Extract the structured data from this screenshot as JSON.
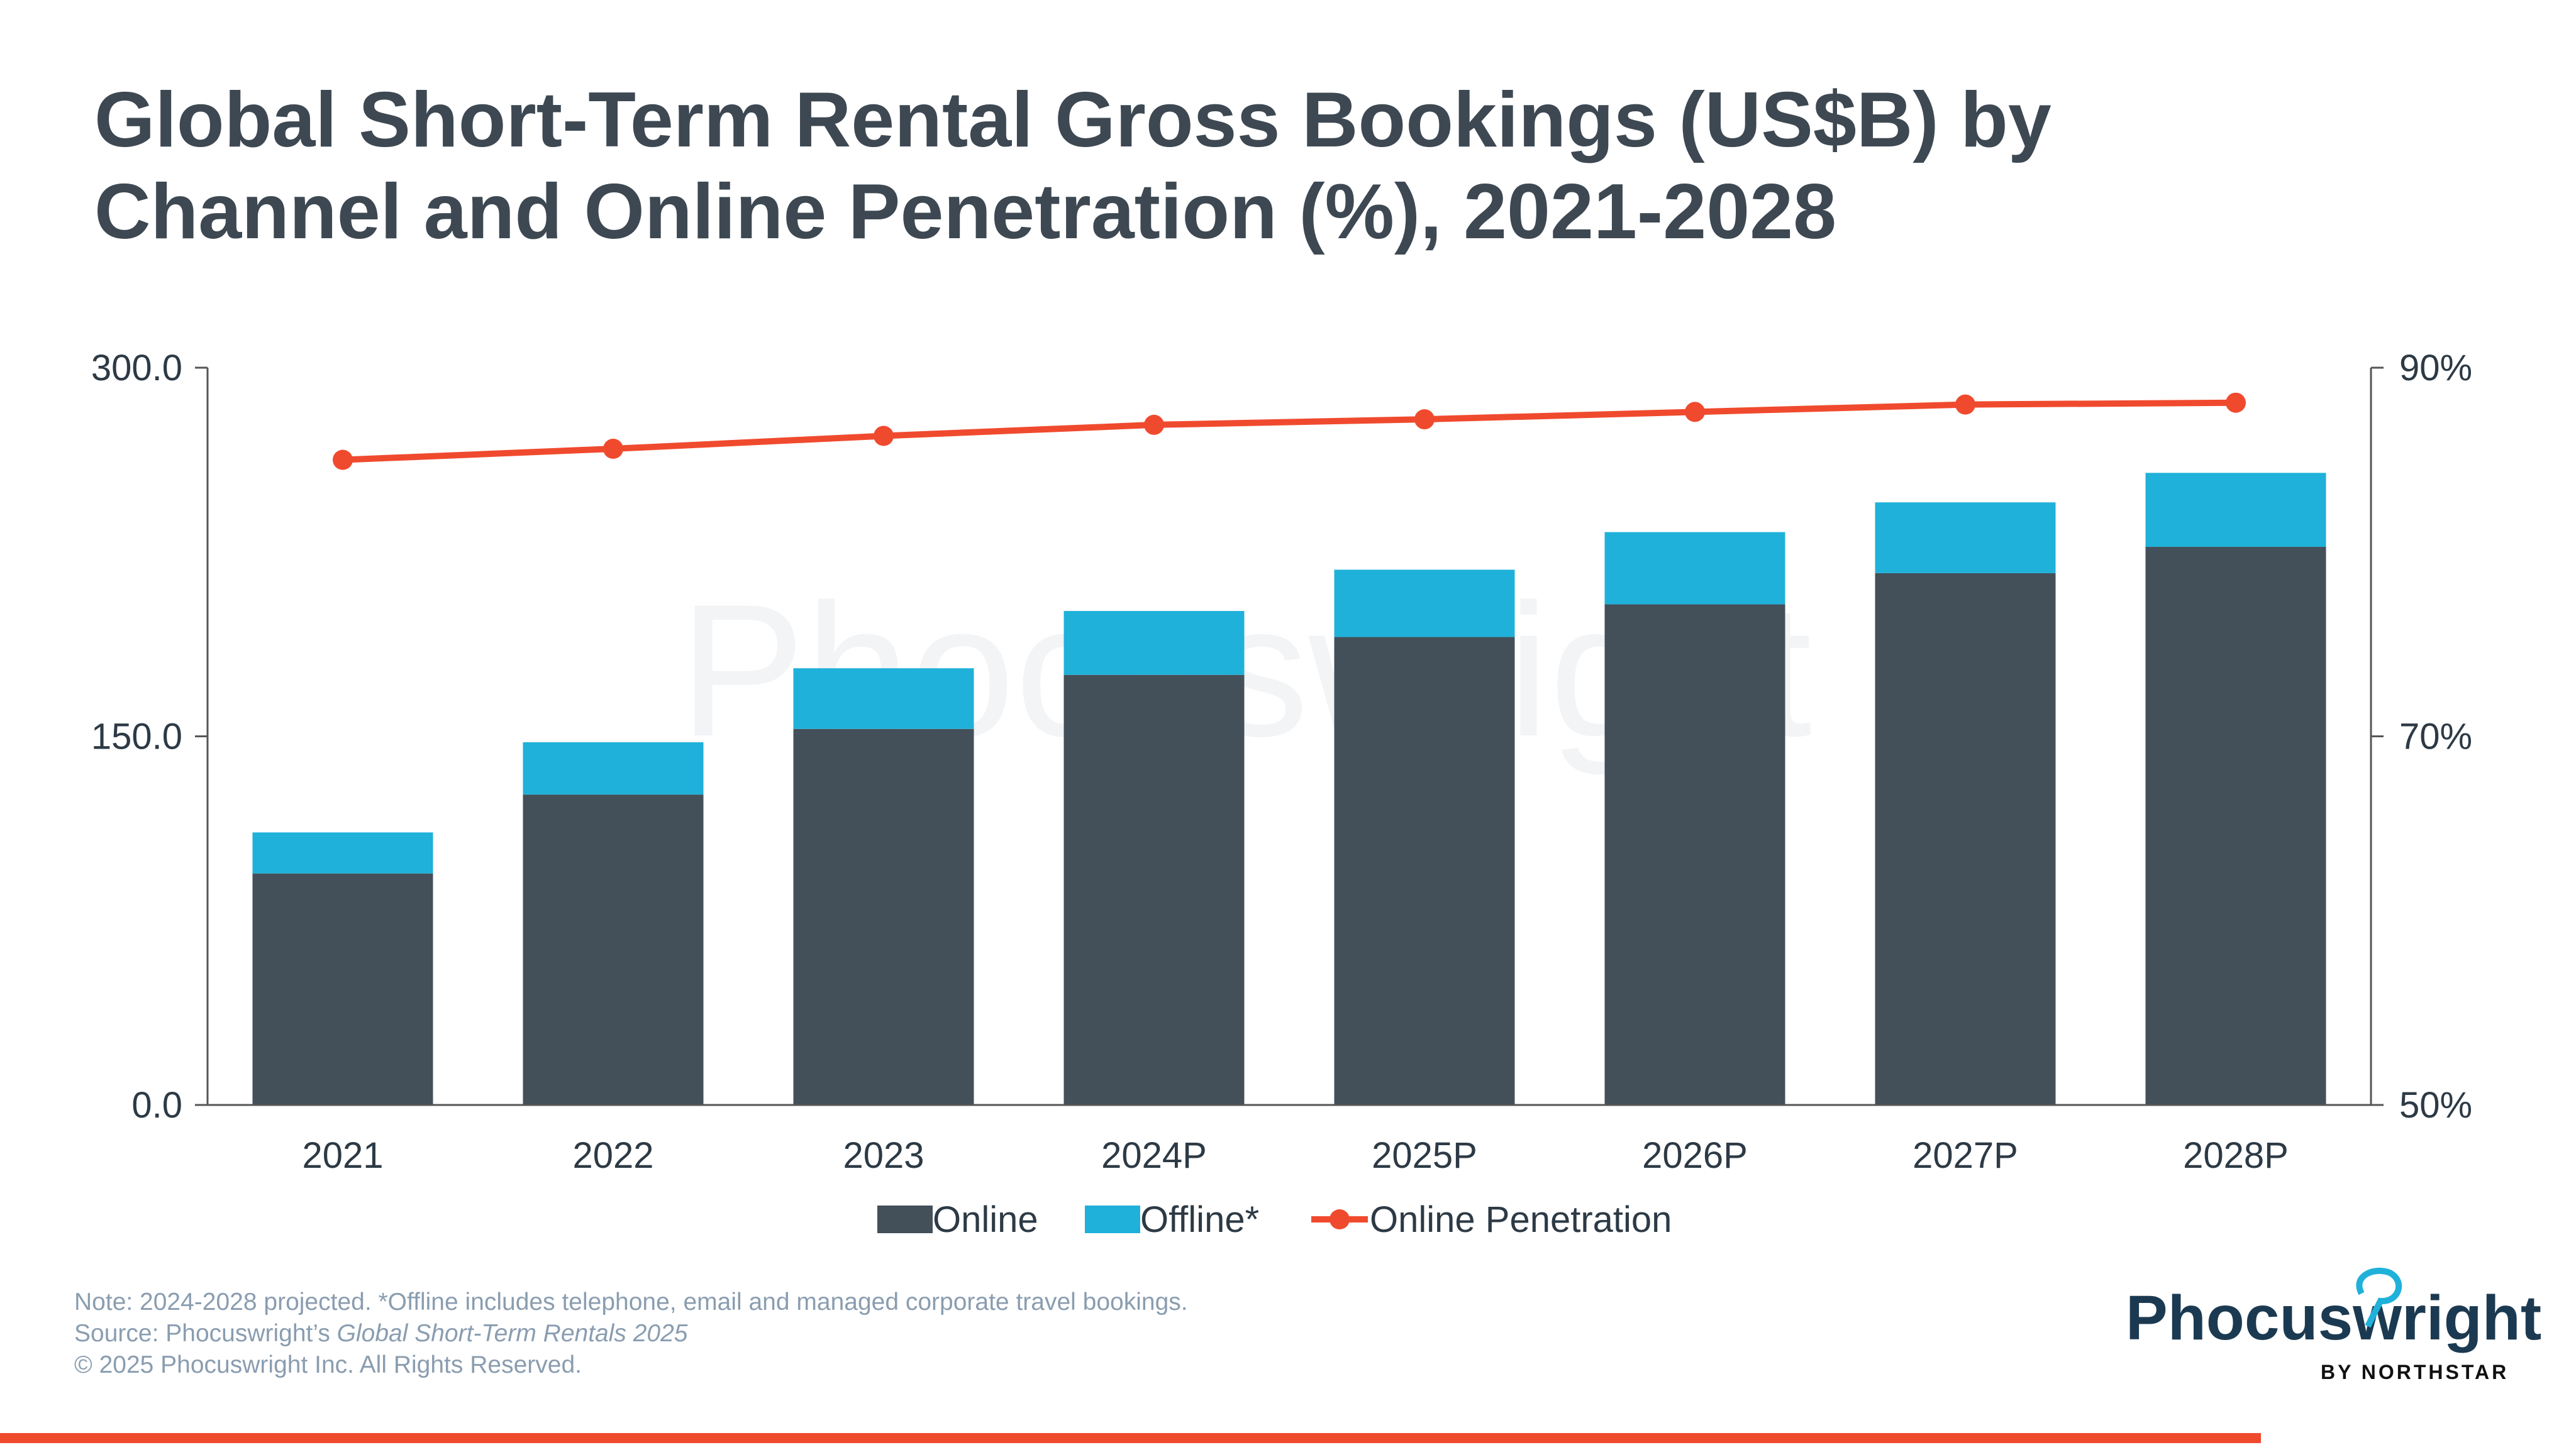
{
  "title_line1": "Global Short-Term Rental Gross Bookings (US$B) by",
  "title_line2": "Channel and Online Penetration (%), 2021-2028",
  "chart_data": {
    "type": "bar",
    "stacked": true,
    "title": "Global Short-Term Rental Gross Bookings (US$B) by Channel and Online Penetration (%), 2021-2028",
    "categories": [
      "2021",
      "2022",
      "2023",
      "2024P",
      "2025P",
      "2026P",
      "2027P",
      "2028P"
    ],
    "series": [
      {
        "name": "Online",
        "type": "bar",
        "axis": "left",
        "color": "#434f59",
        "values": [
          94.2,
          126.3,
          153.0,
          175.0,
          190.4,
          203.7,
          216.4,
          227.1
        ]
      },
      {
        "name": "Offline*",
        "type": "bar",
        "axis": "left",
        "color": "#1fb1d9",
        "values": [
          16.7,
          21.3,
          24.7,
          26.0,
          27.4,
          29.4,
          28.8,
          30.1
        ]
      },
      {
        "name": "Online Penetration",
        "type": "line",
        "axis": "right",
        "color": "#f04a2e",
        "values": [
          85.0,
          85.6,
          86.3,
          86.9,
          87.2,
          87.6,
          88.0,
          88.1
        ]
      }
    ],
    "y_left": {
      "range": [
        0,
        300
      ],
      "ticks": [
        "0.0",
        "150.0",
        "300.0"
      ],
      "tick_values": [
        0,
        150,
        300
      ]
    },
    "y_right": {
      "range": [
        50,
        90
      ],
      "ticks": [
        "50%",
        "70%",
        "90%"
      ],
      "tick_values": [
        50,
        70,
        90
      ]
    },
    "grid": false,
    "legend_position": "bottom"
  },
  "footer": {
    "note": "Note: 2024-2028 projected. *Offline includes telephone, email and managed corporate travel bookings.",
    "source_prefix": "Source: Phocuswright’s ",
    "source_title": "Global Short-Term Rentals 2025",
    "copyright": "© 2025 Phocuswright Inc. All Rights Reserved."
  },
  "logo": {
    "name": "Phocuswright",
    "sub": "BY NORTHSTAR",
    "color": "#1b3a52",
    "accent": "#1fb1d9"
  },
  "accent_bar_color": "#f04a2e"
}
